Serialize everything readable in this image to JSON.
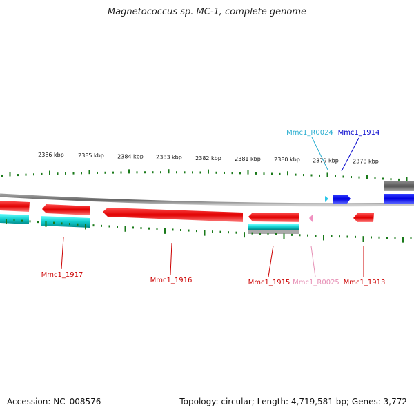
{
  "title": "Magnetococcus sp. MC-1, complete genome",
  "ruler_ticks": [
    "2386 kbp",
    "2385 kbp",
    "2384 kbp",
    "2383 kbp",
    "2382 kbp",
    "2381 kbp",
    "2380 kbp",
    "2379 kbp",
    "2378 kbp"
  ],
  "genes": [
    {
      "id": "mmc1-1917",
      "label": "Mmc1_1917",
      "color": "#cc0000"
    },
    {
      "id": "mmc1-1916",
      "label": "Mmc1_1916",
      "color": "#cc0000"
    },
    {
      "id": "mmc1-1915",
      "label": "Mmc1_1915",
      "color": "#cc0000"
    },
    {
      "id": "mmc1-r0025",
      "label": "Mmc1_R0025",
      "color": "#e68fb5"
    },
    {
      "id": "mmc1-1913",
      "label": "Mmc1_1913",
      "color": "#cc0000"
    },
    {
      "id": "mmc1-r0024",
      "label": "Mmc1_R0024",
      "color": "#2aaed0"
    },
    {
      "id": "mmc1-1914",
      "label": "Mmc1_1914",
      "color": "#0000cc"
    }
  ],
  "footer": {
    "accession": "Accession: NC_008576",
    "topology": "Topology: circular; Length: 4,719,581 bp; Genes: 3,772"
  }
}
